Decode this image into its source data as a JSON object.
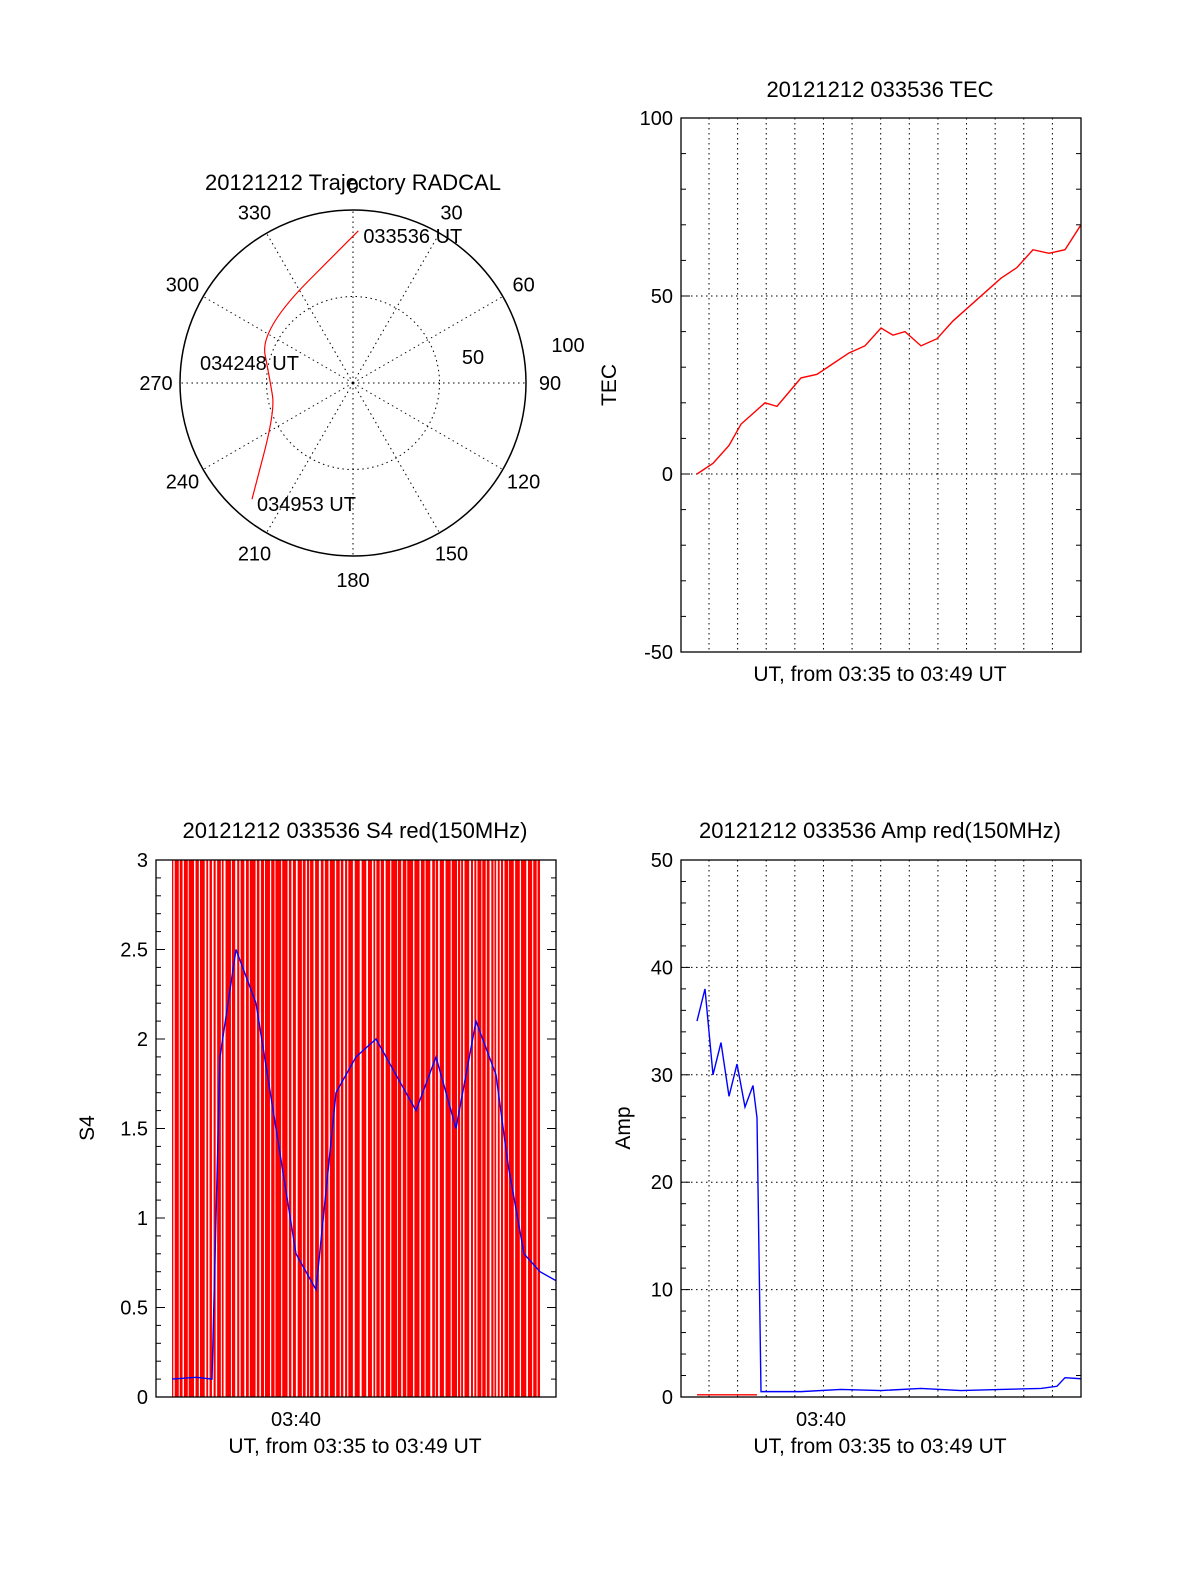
{
  "colors": {
    "red": "#ff0000",
    "blue": "#0000ff"
  },
  "polar": {
    "title": "20121212 Trajectory RADCAL",
    "azimuth_labels": [
      "0",
      "30",
      "60",
      "90",
      "120",
      "150",
      "180",
      "210",
      "240",
      "270",
      "300",
      "330"
    ],
    "radius_labels": [
      "50",
      "100"
    ],
    "time_labels": [
      "033536 UT",
      "034248 UT",
      "034953 UT"
    ],
    "grid": true
  },
  "chart_data": [
    {
      "type": "polar",
      "title": "20121212 Trajectory RADCAL",
      "series": [
        {
          "name": "",
          "color": "#ff0000",
          "points": [
            {
              "az": 2,
              "r": 88
            },
            {
              "az": 300,
              "r": 62
            },
            {
              "az": 272,
              "r": 48
            },
            {
              "az": 250,
              "r": 48
            },
            {
              "az": 221,
              "r": 89
            }
          ]
        }
      ],
      "annotations": [
        {
          "text": "033536 UT",
          "az": 2,
          "r": 88
        },
        {
          "text": "034248 UT",
          "az": 272,
          "r": 48
        },
        {
          "text": "034953 UT",
          "az": 221,
          "r": 89
        }
      ],
      "rlim": [
        0,
        100
      ]
    },
    {
      "type": "line",
      "title": "20121212 033536 TEC",
      "xlabel": "UT, from 03:35 to 03:49 UT",
      "ylabel": "TEC",
      "ylim": [
        -50,
        100
      ],
      "xlim": [
        0,
        1
      ],
      "yticks": [
        "-50",
        "0",
        "50",
        "100"
      ],
      "xtick_labels": [],
      "grid": true,
      "series": [
        {
          "name": "",
          "color": "#ff0000",
          "x": [
            0.04,
            0.08,
            0.12,
            0.15,
            0.18,
            0.21,
            0.24,
            0.27,
            0.3,
            0.34,
            0.38,
            0.42,
            0.46,
            0.5,
            0.53,
            0.56,
            0.6,
            0.64,
            0.68,
            0.72,
            0.76,
            0.8,
            0.84,
            0.88,
            0.92,
            0.96,
            1.0
          ],
          "y": [
            0,
            3,
            8,
            14,
            17,
            20,
            19,
            23,
            27,
            28,
            31,
            34,
            36,
            41,
            39,
            40,
            36,
            38,
            43,
            47,
            51,
            55,
            58,
            63,
            62,
            63,
            70
          ]
        }
      ]
    },
    {
      "type": "line",
      "title": "20121212 033536 S4 red(150MHz)",
      "xlabel": "UT, from 03:35 to 03:49 UT",
      "ylabel": "S4",
      "ylim": [
        0,
        3
      ],
      "xlim": [
        0,
        1
      ],
      "yticks": [
        "0",
        "0.5",
        "1",
        "1.5",
        "2",
        "2.5",
        "3"
      ],
      "xtick_labels": [
        "03:40"
      ],
      "xtick_pos": [
        0.35
      ],
      "grid": false,
      "series": [
        {
          "name": "",
          "color": "#ff0000",
          "style": "dense-vertical-fill",
          "x": [
            0.04,
            0.96
          ],
          "y": [
            0,
            3
          ]
        },
        {
          "name": "",
          "color": "#0000ff",
          "x": [
            0.04,
            0.1,
            0.14,
            0.16,
            0.2,
            0.25,
            0.3,
            0.35,
            0.4,
            0.45,
            0.5,
            0.55,
            0.6,
            0.65,
            0.7,
            0.75,
            0.8,
            0.85,
            0.88,
            0.92,
            0.96,
            1.0
          ],
          "y": [
            0.1,
            0.11,
            0.1,
            1.9,
            2.5,
            2.2,
            1.5,
            0.8,
            0.6,
            1.7,
            1.9,
            2.0,
            1.8,
            1.6,
            1.9,
            1.5,
            2.1,
            1.8,
            1.3,
            0.8,
            0.7,
            0.65
          ]
        }
      ]
    },
    {
      "type": "line",
      "title": "20121212 033536 Amp red(150MHz)",
      "xlabel": "UT, from 03:35 to 03:49 UT",
      "ylabel": "Amp",
      "ylim": [
        0,
        50
      ],
      "xlim": [
        0,
        1
      ],
      "yticks": [
        "0",
        "10",
        "20",
        "30",
        "40",
        "50"
      ],
      "xtick_labels": [
        "03:40"
      ],
      "xtick_pos": [
        0.35
      ],
      "grid": true,
      "series": [
        {
          "name": "",
          "color": "#0000ff",
          "x": [
            0.04,
            0.06,
            0.08,
            0.1,
            0.12,
            0.14,
            0.16,
            0.18,
            0.19,
            0.2,
            0.3,
            0.4,
            0.5,
            0.6,
            0.7,
            0.8,
            0.9,
            0.94,
            0.96,
            1.0
          ],
          "y": [
            35,
            38,
            30,
            33,
            28,
            31,
            27,
            29,
            26,
            0.5,
            0.5,
            0.7,
            0.6,
            0.8,
            0.6,
            0.7,
            0.8,
            1.0,
            1.8,
            1.7
          ]
        },
        {
          "name": "",
          "color": "#ff0000",
          "x": [
            0.04,
            0.19
          ],
          "y": [
            0.2,
            0.2
          ]
        }
      ]
    }
  ]
}
